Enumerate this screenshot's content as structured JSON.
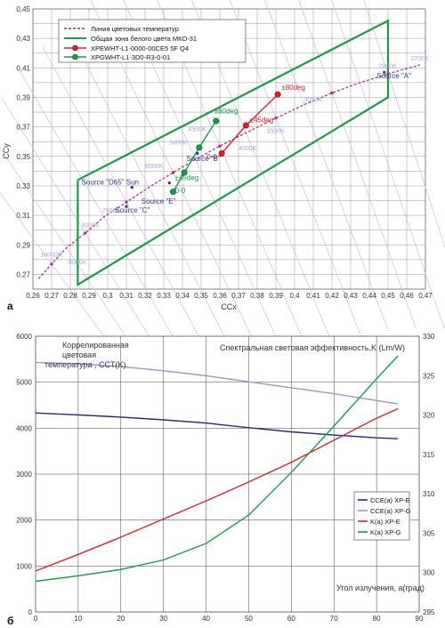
{
  "chart_data": [
    {
      "type": "scatter",
      "panel": "а",
      "title": "",
      "xlabel": "CCx",
      "ylabel": "CCy",
      "xlim": [
        0.26,
        0.47
      ],
      "ylim": [
        0.26,
        0.45
      ],
      "x_ticks": [
        "0,26",
        "0,27",
        "0,28",
        "0,29",
        "0,3",
        "0,31",
        "0,32",
        "0,33",
        "0,34",
        "0,35",
        "0,36",
        "0,37",
        "0,38",
        "0,39",
        "0,4",
        "0,41",
        "0,42",
        "0,43",
        "0,44",
        "0,45",
        "0,46",
        "0,47"
      ],
      "y_ticks": [
        "0,27",
        "0,29",
        "0,31",
        "0,33",
        "0,35",
        "0,37",
        "0,39",
        "0,41",
        "0,43",
        "0,45"
      ],
      "grid": true,
      "legend_position": "top-left",
      "legend": [
        {
          "label": "Линия цветовых температур",
          "color": "#9c2c7c",
          "style": "dashed"
        },
        {
          "label": "Общая зона белого цвета МКО-31",
          "color": "#1a9a46",
          "style": "solid"
        },
        {
          "label": "XPEWHT-L1-0000-00CE5 5F Q4",
          "color": "#e0202a",
          "style": "marker"
        },
        {
          "label": "XPGWHT-L1-3D0-R3-0-01",
          "color": "#1a9a46",
          "style": "marker"
        }
      ],
      "series": [
        {
          "name": "Линия цветовых температур",
          "color": "#9c2c7c",
          "points": [
            [
              0.263,
              0.267
            ],
            [
              0.27,
              0.277
            ],
            [
              0.278,
              0.288
            ],
            [
              0.288,
              0.298
            ],
            [
              0.298,
              0.309
            ],
            [
              0.31,
              0.319
            ],
            [
              0.322,
              0.329
            ],
            [
              0.335,
              0.339
            ],
            [
              0.347,
              0.348
            ],
            [
              0.36,
              0.357
            ],
            [
              0.374,
              0.366
            ],
            [
              0.39,
              0.376
            ],
            [
              0.405,
              0.385
            ],
            [
              0.42,
              0.393
            ],
            [
              0.435,
              0.4
            ],
            [
              0.45,
              0.406
            ],
            [
              0.467,
              0.412
            ]
          ]
        },
        {
          "name": "Общая зона белого цвета МКО-31",
          "color": "#1a9a46",
          "points": [
            [
              0.284,
              0.334
            ],
            [
              0.45,
              0.442
            ],
            [
              0.45,
              0.39
            ],
            [
              0.284,
              0.263
            ],
            [
              0.284,
              0.334
            ]
          ]
        },
        {
          "name": "XPEWHT-L1-0000-00CE5 5F Q4",
          "color": "#e0202a",
          "points": [
            [
              0.361,
              0.352
            ],
            [
              0.374,
              0.371
            ],
            [
              0.391,
              0.392
            ]
          ]
        },
        {
          "name": "XPGWHT-L1-3D0-R3-0-01",
          "color": "#1a9a46",
          "points": [
            [
              0.335,
              0.326
            ],
            [
              0.341,
              0.339
            ],
            [
              0.349,
              0.356
            ],
            [
              0.358,
              0.374
            ]
          ]
        },
        {
          "name": "Sources",
          "color": "#2b3a8c",
          "points": [
            [
              0.313,
              0.329
            ],
            [
              0.348,
              0.352
            ],
            [
              0.31,
              0.316
            ],
            [
              0.333,
              0.332
            ],
            [
              0.448,
              0.407
            ]
          ]
        }
      ],
      "cct_labels": [
        "10000K",
        "9000K",
        "8000K",
        "7000K",
        "6000K",
        "5000K",
        "4500K",
        "4000K",
        "3500K",
        "3000K",
        "2800K",
        "2700K"
      ],
      "annotations": {
        "red": [
          "0-0",
          "±45deg",
          "±80deg"
        ],
        "green": [
          "0-0",
          "±45deg",
          "±80deg"
        ],
        "sources": [
          "Source \"D65\" Sun",
          "Source \"E\"",
          "Source \"C\"",
          "Source \"B\"",
          "Source \"A\""
        ]
      }
    },
    {
      "type": "line",
      "panel": "б",
      "title": "",
      "xlabel": "Угол излучения, а(град)",
      "ylabel_left": "Коррелированная цветовая температура , CCT(K)",
      "ylabel_right": "Спектральная световая эффективность,K (Lm/W)",
      "xlim": [
        0,
        90
      ],
      "ylim_left": [
        0,
        6000
      ],
      "ylim_right": [
        295,
        330
      ],
      "x_ticks": [
        "0",
        "10",
        "20",
        "30",
        "40",
        "50",
        "60",
        "70",
        "80",
        "90"
      ],
      "y_ticks_left": [
        "0",
        "1000",
        "2000",
        "3000",
        "4000",
        "5000",
        "6000"
      ],
      "y_ticks_right": [
        "295",
        "300",
        "305",
        "310",
        "315",
        "320",
        "325",
        "330"
      ],
      "grid": true,
      "legend_position": "bottom-right",
      "series": [
        {
          "name": "CCE(a) XP-E",
          "color": "#1f2a80",
          "axis": "left",
          "x": [
            0,
            10,
            20,
            30,
            40,
            50,
            60,
            70,
            80,
            85
          ],
          "values": [
            4330,
            4290,
            4240,
            4180,
            4110,
            4010,
            3920,
            3850,
            3790,
            3770
          ]
        },
        {
          "name": "CCE(a) XP-G",
          "color": "#9a95d0",
          "axis": "left",
          "x": [
            0,
            10,
            20,
            30,
            40,
            50,
            60,
            70,
            80,
            85
          ],
          "values": [
            5430,
            5400,
            5340,
            5250,
            5140,
            5010,
            4880,
            4750,
            4600,
            4530
          ]
        },
        {
          "name": "K(a) XP-E",
          "color": "#e0202a",
          "axis": "right",
          "x": [
            0,
            10,
            20,
            30,
            40,
            50,
            60,
            70,
            80,
            85
          ],
          "values": [
            300.2,
            302.3,
            304.5,
            306.8,
            309.1,
            311.5,
            314.0,
            316.8,
            319.6,
            320.8
          ]
        },
        {
          "name": "K(a) XP-G",
          "color": "#1a9a46",
          "axis": "right",
          "x": [
            0,
            10,
            20,
            30,
            40,
            50,
            60,
            70,
            80,
            85
          ],
          "values": [
            298.9,
            299.6,
            300.4,
            301.6,
            303.7,
            307.3,
            312.7,
            318.6,
            324.6,
            327.5
          ]
        }
      ]
    }
  ]
}
